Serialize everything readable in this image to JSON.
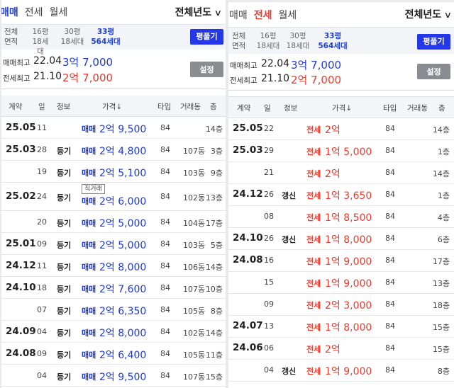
{
  "left": {
    "tabs": [
      "매매",
      "전세",
      "월세"
    ],
    "active_tab": 0,
    "year_filter": "전체년도",
    "size": {
      "row_labels": [
        "전체",
        "면적"
      ],
      "options": [
        {
          "pyeong": "16평",
          "units": "18세대"
        },
        {
          "pyeong": "30평",
          "units": "18세대"
        },
        {
          "pyeong": "33평",
          "units": "564세대"
        }
      ],
      "selected": 2,
      "pyeong_button": "평풀기"
    },
    "price": {
      "sale_label": "매매최고",
      "sale_date": "22.04",
      "sale_value": "3억 7,000",
      "lease_label": "전세최고",
      "lease_date": "21.10",
      "lease_value": "2억 7,000",
      "settings_button": "설정"
    },
    "columns": [
      "계약",
      "일",
      "정보",
      "가격↓",
      "타입",
      "거래동",
      "층"
    ],
    "rows": [
      {
        "date": "25.05",
        "day": "11",
        "info": "",
        "tag": "",
        "kind": "매매",
        "price": "2억 9,500",
        "type": "84",
        "dong": "",
        "floor": "14층"
      },
      {
        "date": "25.03",
        "day": "28",
        "info": "등기",
        "tag": "",
        "kind": "매매",
        "price": "2억 4,800",
        "type": "84",
        "dong": "107동",
        "floor": "3층"
      },
      {
        "date": "",
        "day": "19",
        "info": "등기",
        "tag": "",
        "kind": "매매",
        "price": "2억 5,100",
        "type": "84",
        "dong": "103동",
        "floor": "9층"
      },
      {
        "date": "25.02",
        "day": "24",
        "info": "등기",
        "tag": "직거래",
        "kind": "매매",
        "price": "2억 6,000",
        "type": "84",
        "dong": "102동",
        "floor": "13층"
      },
      {
        "date": "",
        "day": "20",
        "info": "등기",
        "tag": "",
        "kind": "매매",
        "price": "2억 5,000",
        "type": "84",
        "dong": "104동",
        "floor": "17층"
      },
      {
        "date": "25.01",
        "day": "09",
        "info": "등기",
        "tag": "",
        "kind": "매매",
        "price": "2억 5,000",
        "type": "84",
        "dong": "103동",
        "floor": "5층"
      },
      {
        "date": "24.12",
        "day": "11",
        "info": "등기",
        "tag": "",
        "kind": "매매",
        "price": "2억 8,000",
        "type": "84",
        "dong": "106동",
        "floor": "14층"
      },
      {
        "date": "24.10",
        "day": "18",
        "info": "등기",
        "tag": "",
        "kind": "매매",
        "price": "2억 7,600",
        "type": "84",
        "dong": "107동",
        "floor": "10층"
      },
      {
        "date": "",
        "day": "07",
        "info": "등기",
        "tag": "",
        "kind": "매매",
        "price": "2억 6,350",
        "type": "84",
        "dong": "105동",
        "floor": "8층"
      },
      {
        "date": "24.09",
        "day": "04",
        "info": "등기",
        "tag": "",
        "kind": "매매",
        "price": "2억 8,000",
        "type": "84",
        "dong": "102동",
        "floor": "14층"
      },
      {
        "date": "24.08",
        "day": "09",
        "info": "등기",
        "tag": "",
        "kind": "매매",
        "price": "2억 6,400",
        "type": "84",
        "dong": "105동",
        "floor": "11층"
      },
      {
        "date": "",
        "day": "04",
        "info": "등기",
        "tag": "",
        "kind": "매매",
        "price": "2억 9,500",
        "type": "84",
        "dong": "107동",
        "floor": "15층"
      }
    ]
  },
  "right": {
    "tabs": [
      "매매",
      "전세",
      "월세"
    ],
    "active_tab": 1,
    "year_filter": "전체년도",
    "size": {
      "row_labels": [
        "전체",
        "면적"
      ],
      "options": [
        {
          "pyeong": "16평",
          "units": "18세대"
        },
        {
          "pyeong": "30평",
          "units": "18세대"
        },
        {
          "pyeong": "33평",
          "units": "564세대"
        }
      ],
      "selected": 2,
      "pyeong_button": "평풀기"
    },
    "price": {
      "sale_label": "매매최고",
      "sale_date": "22.04",
      "sale_value": "3억 7,000",
      "lease_label": "전세최고",
      "lease_date": "21.10",
      "lease_value": "2억 7,000",
      "settings_button": "설정"
    },
    "columns": [
      "계약",
      "일",
      "정보",
      "가격↓",
      "타입",
      "거래동",
      "층"
    ],
    "rows": [
      {
        "date": "25.05",
        "day": "22",
        "info": "",
        "kind": "전세",
        "price": "2억",
        "type": "84",
        "floor": "14층"
      },
      {
        "date": "25.03",
        "day": "29",
        "info": "",
        "kind": "전세",
        "price": "1억 5,000",
        "type": "84",
        "floor": "1층"
      },
      {
        "date": "",
        "day": "21",
        "info": "",
        "kind": "전세",
        "price": "2억",
        "type": "84",
        "floor": "14층"
      },
      {
        "date": "24.12",
        "day": "26",
        "info": "갱신",
        "kind": "전세",
        "price": "1억 3,650",
        "type": "84",
        "floor": "1층"
      },
      {
        "date": "",
        "day": "08",
        "info": "",
        "kind": "전세",
        "price": "1억 8,500",
        "type": "84",
        "floor": "4층"
      },
      {
        "date": "24.10",
        "day": "26",
        "info": "갱신",
        "kind": "전세",
        "price": "1억 8,000",
        "type": "84",
        "floor": "6층"
      },
      {
        "date": "24.08",
        "day": "16",
        "info": "",
        "kind": "전세",
        "price": "1억 9,000",
        "type": "84",
        "floor": "17층"
      },
      {
        "date": "",
        "day": "15",
        "info": "",
        "kind": "전세",
        "price": "1억 9,000",
        "type": "84",
        "floor": "13층"
      },
      {
        "date": "",
        "day": "09",
        "info": "",
        "kind": "전세",
        "price": "2억 3,000",
        "type": "84",
        "floor": "18층"
      },
      {
        "date": "24.07",
        "day": "13",
        "info": "",
        "kind": "전세",
        "price": "1억 8,000",
        "type": "84",
        "floor": "15층"
      },
      {
        "date": "24.06",
        "day": "06",
        "info": "",
        "kind": "전세",
        "price": "2억",
        "type": "84",
        "floor": "15층"
      },
      {
        "date": "",
        "day": "04",
        "info": "갱신",
        "kind": "전세",
        "price": "1억 9,000",
        "type": "84",
        "floor": "8층"
      }
    ]
  }
}
